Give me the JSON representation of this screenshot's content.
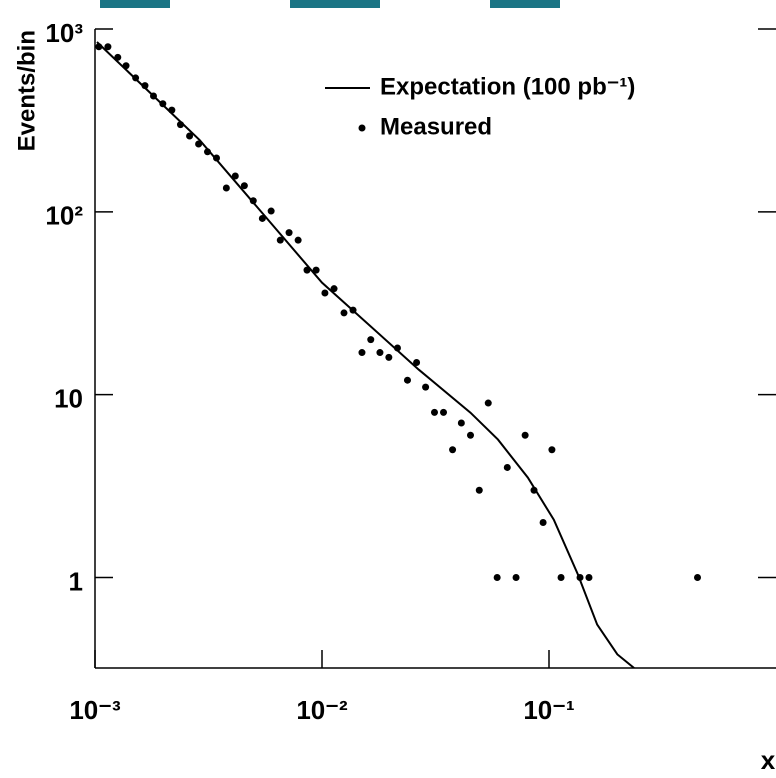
{
  "chart_data": {
    "type": "line",
    "xlabel": "x",
    "ylabel": "Events/bin",
    "xscale": "log",
    "yscale": "log",
    "xlim": [
      0.001,
      1
    ],
    "ylim": [
      0.32,
      1000
    ],
    "xticks": [
      {
        "value": 0.001,
        "label": "10⁻³"
      },
      {
        "value": 0.01,
        "label": "10⁻²"
      },
      {
        "value": 0.1,
        "label": "10⁻¹"
      }
    ],
    "yticks": [
      {
        "value": 1000,
        "label": "10³"
      },
      {
        "value": 100,
        "label": "10²"
      },
      10,
      1
    ],
    "legend": "top",
    "series": [
      {
        "name": "Expectation (100 pb⁻¹)",
        "type": "line",
        "color": "#000000",
        "x": [
          0.00102,
          0.00289,
          0.01,
          0.0267,
          0.0451,
          0.0596,
          0.0807,
          0.105,
          0.134,
          0.163,
          0.2,
          0.237
        ],
        "values": [
          849,
          247,
          41,
          13.7,
          7.97,
          5.68,
          3.52,
          2.07,
          1.04,
          0.553,
          0.38,
          0.32
        ]
      },
      {
        "name": "Measured",
        "type": "scatter",
        "color": "#000000",
        "x": [
          0.00104,
          0.00114,
          0.00126,
          0.00137,
          0.00151,
          0.00166,
          0.00181,
          0.00199,
          0.00218,
          0.00238,
          0.00261,
          0.00286,
          0.00313,
          0.00343,
          0.00379,
          0.00415,
          0.00455,
          0.00498,
          0.00546,
          0.00597,
          0.00655,
          0.00716,
          0.00785,
          0.00859,
          0.00942,
          0.0103,
          0.0113,
          0.0125,
          0.0137,
          0.015,
          0.0164,
          0.018,
          0.0197,
          0.0215,
          0.0238,
          0.0261,
          0.0286,
          0.0313,
          0.0343,
          0.0376,
          0.0411,
          0.0451,
          0.0493,
          0.054,
          0.0591,
          0.0655,
          0.0716,
          0.0785,
          0.0859,
          0.0942,
          0.103,
          0.113,
          0.137,
          0.15,
          0.451
        ],
        "values": [
          800,
          800,
          700,
          630,
          540,
          490,
          430,
          390,
          360,
          300,
          260,
          235,
          213,
          197,
          135,
          157,
          139,
          115,
          92,
          101,
          70,
          77,
          70,
          48,
          48,
          36,
          38,
          28,
          29,
          17,
          20,
          17,
          16,
          18,
          12,
          15,
          11,
          8,
          8,
          5,
          7,
          6,
          3,
          9,
          1,
          4,
          1,
          6,
          3,
          2,
          5,
          1,
          1,
          1,
          1
        ]
      }
    ]
  }
}
